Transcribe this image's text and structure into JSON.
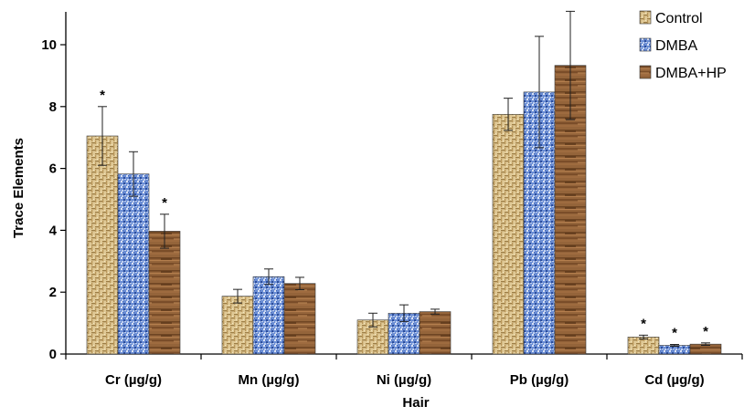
{
  "chart_data": {
    "type": "bar",
    "title": "",
    "xlabel": "Hair",
    "ylabel": "Trace Elements",
    "ylim": [
      0,
      11
    ],
    "yticks": [
      0,
      2,
      4,
      6,
      8,
      10
    ],
    "categories": [
      "Cr  (µg/g)",
      "Mn  (µg/g)",
      "Ni  (µg/g)",
      "Pb  (µg/g)",
      "Cd  (µg/g)"
    ],
    "series": [
      {
        "name": "Control",
        "values": [
          7.05,
          1.87,
          1.1,
          7.75,
          0.55
        ],
        "errors": [
          0.95,
          0.22,
          0.22,
          0.52,
          0.06
        ],
        "significant": [
          true,
          false,
          false,
          false,
          true
        ],
        "pattern": "weave-tan"
      },
      {
        "name": "DMBA",
        "values": [
          5.82,
          2.5,
          1.32,
          8.47,
          0.28
        ],
        "errors": [
          0.72,
          0.25,
          0.27,
          1.8,
          0.03
        ],
        "significant": [
          false,
          false,
          false,
          false,
          true
        ],
        "pattern": "blue-mosaic"
      },
      {
        "name": "DMBA+HP",
        "values": [
          3.97,
          2.28,
          1.37,
          9.33,
          0.32
        ],
        "errors": [
          0.55,
          0.2,
          0.08,
          1.75,
          0.04
        ],
        "significant": [
          true,
          false,
          false,
          false,
          true
        ],
        "pattern": "wood-brown"
      }
    ],
    "significance_marker": "*",
    "legend_position": "top-right",
    "colors": {
      "Control": "#d9c089",
      "DMBA": "#5f80c8",
      "DMBA+HP": "#8a5a32"
    }
  }
}
